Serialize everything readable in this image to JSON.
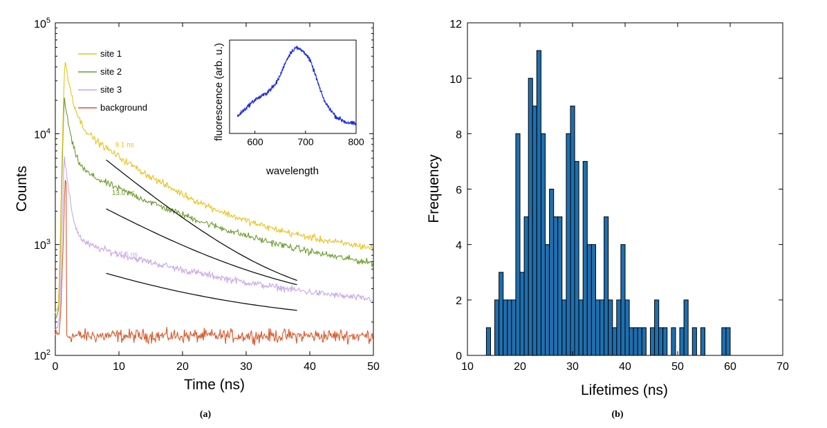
{
  "chart_data": [
    {
      "panel": "(a)",
      "type": "line",
      "xlabel": "Time (ns)",
      "ylabel": "Counts",
      "xlim": [
        0,
        50
      ],
      "ylim": [
        100,
        100000
      ],
      "yscale": "log",
      "xticks": [
        "0",
        "10",
        "20",
        "30",
        "40",
        "50"
      ],
      "yticks": [
        {
          "base": "10",
          "exp": "2"
        },
        {
          "base": "10",
          "exp": "3"
        },
        {
          "base": "10",
          "exp": "4"
        },
        {
          "base": "10",
          "exp": "5"
        }
      ],
      "legend_position": "top-left",
      "series": [
        {
          "name": "site 1",
          "color": "#e8c21a",
          "peak_time": 1.5,
          "peak": 46000,
          "baseline": 250,
          "fast_amp": 33000,
          "fast_tau": 0.9,
          "slow_amp": 12000,
          "slow_tau": 9.1,
          "tail_amp": 1400,
          "tail_tau": 60
        },
        {
          "name": "site 2",
          "color": "#6b9a2a",
          "peak_time": 1.4,
          "peak": 22000,
          "baseline": 220,
          "fast_amp": 16000,
          "fast_tau": 0.8,
          "slow_amp": 4400,
          "slow_tau": 13.0,
          "tail_amp": 800,
          "tail_tau": 60
        },
        {
          "name": "site 3",
          "color": "#c7a6e8",
          "peak_time": 1.4,
          "peak": 6300,
          "baseline": 180,
          "fast_amp": 5200,
          "fast_tau": 0.7,
          "slow_amp": 750,
          "slow_tau": 17.5,
          "tail_amp": 210,
          "tail_tau": 60
        },
        {
          "name": "background",
          "color": "#d8572a",
          "peak_time": 1.6,
          "peak": 4400,
          "baseline": 150,
          "fast_amp": 4300,
          "fast_tau": 0.35,
          "slow_amp": 0,
          "slow_tau": 1,
          "tail_amp": 0,
          "tail_tau": 1
        }
      ],
      "fits": [
        {
          "label": "9.1 ns",
          "color": "#e8c21a",
          "x_start": 8,
          "x_end": 38,
          "y_start": 5800,
          "tau": 9.1,
          "floor": 270
        },
        {
          "label": "13.0 ns",
          "color": "#6b9a2a",
          "x_start": 8,
          "x_end": 38,
          "y_start": 2100,
          "tau": 13.0,
          "floor": 250
        },
        {
          "label": "17.5 ns",
          "color": "#c7a6e8",
          "x_start": 8,
          "x_end": 38,
          "y_start": 550,
          "tau": 17.5,
          "floor": 190
        }
      ],
      "fit_color": "#111111",
      "annotations": [
        {
          "text": "9.1 ns",
          "x": 9.4,
          "y": 7600
        },
        {
          "text": "13.0 ns",
          "x": 8.9,
          "y": 2800
        },
        {
          "text": "17.5 ns",
          "x": 9.4,
          "y": 780
        }
      ],
      "inset": {
        "xlabel": "wavelength",
        "ylabel": "fluorescence (arb. u.)",
        "xlim": [
          550,
          800
        ],
        "ylim": [
          0,
          1
        ],
        "xticks": [
          "600",
          "700",
          "800"
        ],
        "color": "#1f2de0",
        "spectrum": {
          "x": [
            565,
            580,
            600,
            620,
            640,
            650,
            660,
            670,
            680,
            690,
            700,
            710,
            720,
            730,
            740,
            760,
            780,
            800
          ],
          "y": [
            0.18,
            0.26,
            0.36,
            0.42,
            0.52,
            0.62,
            0.76,
            0.86,
            0.92,
            0.9,
            0.86,
            0.77,
            0.62,
            0.45,
            0.32,
            0.18,
            0.12,
            0.1
          ]
        }
      }
    },
    {
      "panel": "(b)",
      "type": "bar",
      "xlabel": "Lifetimes (ns)",
      "ylabel": "Frequency",
      "xlim": [
        10,
        70
      ],
      "ylim": [
        0,
        12
      ],
      "xticks": [
        "10",
        "20",
        "30",
        "40",
        "50",
        "60",
        "70"
      ],
      "yticks": [
        "0",
        "2",
        "4",
        "6",
        "8",
        "10",
        "12"
      ],
      "bar_color": "#1f6fae",
      "bin_width": 0.8,
      "bins": [
        {
          "x": 13.6,
          "count": 1
        },
        {
          "x": 15.2,
          "count": 2
        },
        {
          "x": 16.0,
          "count": 3
        },
        {
          "x": 16.8,
          "count": 2
        },
        {
          "x": 17.6,
          "count": 2
        },
        {
          "x": 18.4,
          "count": 2
        },
        {
          "x": 19.2,
          "count": 8
        },
        {
          "x": 20.0,
          "count": 3
        },
        {
          "x": 20.8,
          "count": 5
        },
        {
          "x": 21.6,
          "count": 10
        },
        {
          "x": 22.4,
          "count": 9
        },
        {
          "x": 23.2,
          "count": 11
        },
        {
          "x": 24.0,
          "count": 8
        },
        {
          "x": 24.8,
          "count": 4
        },
        {
          "x": 25.6,
          "count": 6
        },
        {
          "x": 26.4,
          "count": 5
        },
        {
          "x": 27.2,
          "count": 5
        },
        {
          "x": 28.0,
          "count": 2
        },
        {
          "x": 28.8,
          "count": 8
        },
        {
          "x": 29.6,
          "count": 9
        },
        {
          "x": 30.4,
          "count": 7
        },
        {
          "x": 31.2,
          "count": 2
        },
        {
          "x": 32.0,
          "count": 7
        },
        {
          "x": 32.8,
          "count": 4
        },
        {
          "x": 33.6,
          "count": 4
        },
        {
          "x": 34.4,
          "count": 2
        },
        {
          "x": 35.2,
          "count": 2
        },
        {
          "x": 36.0,
          "count": 5
        },
        {
          "x": 36.8,
          "count": 2
        },
        {
          "x": 37.6,
          "count": 1
        },
        {
          "x": 38.4,
          "count": 2
        },
        {
          "x": 39.2,
          "count": 4
        },
        {
          "x": 40.0,
          "count": 2
        },
        {
          "x": 40.8,
          "count": 1
        },
        {
          "x": 41.6,
          "count": 1
        },
        {
          "x": 42.4,
          "count": 1
        },
        {
          "x": 43.2,
          "count": 1
        },
        {
          "x": 44.8,
          "count": 1
        },
        {
          "x": 45.6,
          "count": 2
        },
        {
          "x": 46.4,
          "count": 1
        },
        {
          "x": 47.2,
          "count": 1
        },
        {
          "x": 48.8,
          "count": 1
        },
        {
          "x": 50.4,
          "count": 1
        },
        {
          "x": 51.2,
          "count": 2
        },
        {
          "x": 52.8,
          "count": 1
        },
        {
          "x": 54.4,
          "count": 1
        },
        {
          "x": 58.4,
          "count": 1
        },
        {
          "x": 59.2,
          "count": 1
        }
      ]
    }
  ]
}
